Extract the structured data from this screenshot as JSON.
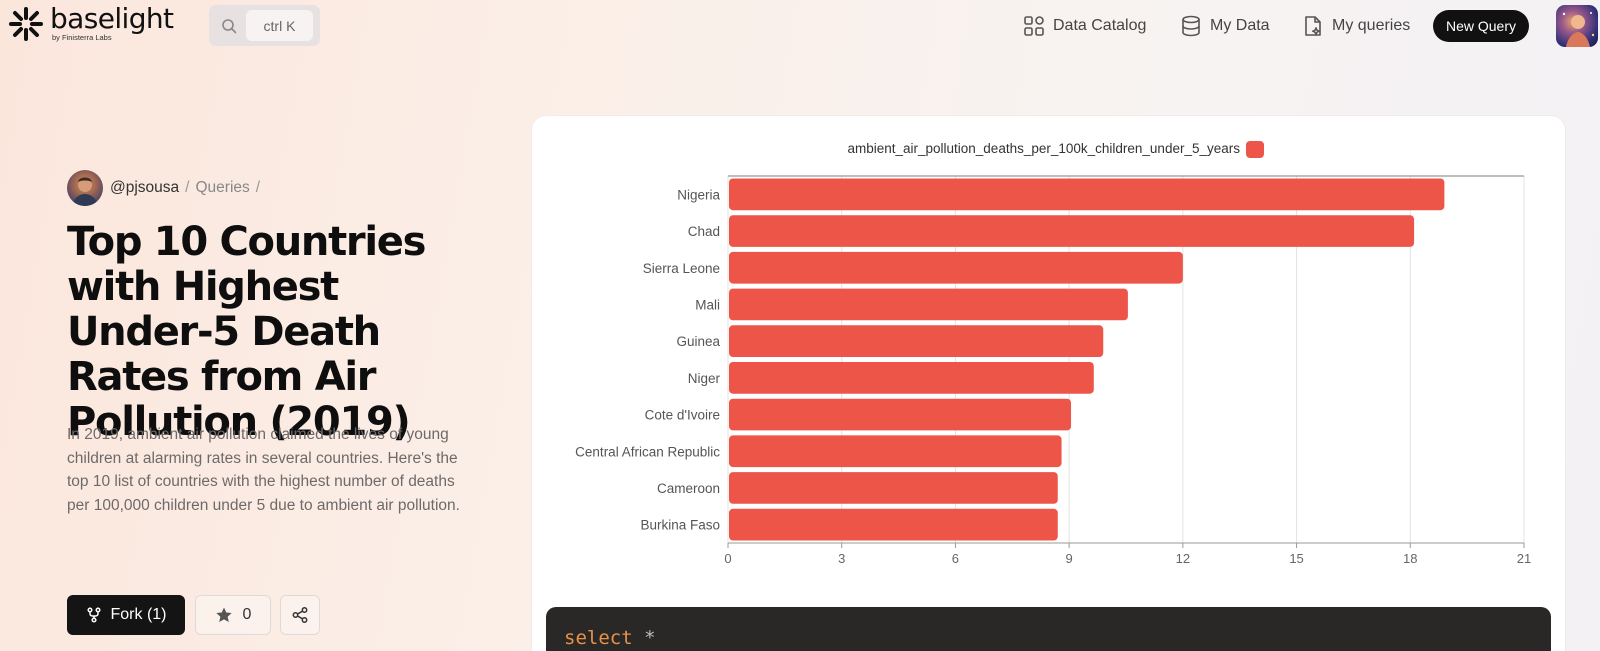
{
  "brand": {
    "name": "baselight",
    "tagline": "by Finisterra Labs"
  },
  "search": {
    "shortcut": "ctrl K"
  },
  "nav": {
    "data_catalog": "Data Catalog",
    "my_data": "My Data",
    "my_queries": "My queries",
    "new_query": "New Query"
  },
  "breadcrumb": {
    "user": "@pjsousa",
    "sep1": "/",
    "section": "Queries",
    "sep2": "/"
  },
  "query": {
    "title": "Top 10 Countries with Highest Under-5 Death Rates from Air Pollution (2019)",
    "description": "In 2019, ambient air pollution claimed the lives of young children at alarming rates in several countries. Here's the top 10 list of countries with the highest number of deaths per 100,000 children under 5 due to ambient air pollution."
  },
  "actions": {
    "fork_label": "Fork (1)",
    "star_count": "0"
  },
  "code": {
    "keyword": "select",
    "rest": "*"
  },
  "colors": {
    "bar": "#ec5548",
    "accent": "#111111"
  },
  "chart_data": {
    "type": "bar",
    "orientation": "horizontal",
    "legend": "top-center",
    "grid": true,
    "series": [
      {
        "name": "ambient_air_pollution_deaths_per_100k_children_under_5_years",
        "values": [
          18.9,
          18.1,
          12.0,
          10.55,
          9.9,
          9.65,
          9.05,
          8.8,
          8.7,
          8.7
        ]
      }
    ],
    "categories": [
      "Nigeria",
      "Chad",
      "Sierra Leone",
      "Mali",
      "Guinea",
      "Niger",
      "Cote d'Ivoire",
      "Central African Republic",
      "Cameroon",
      "Burkina Faso"
    ],
    "xlim": [
      0,
      21
    ],
    "xticks": [
      "0",
      "3",
      "6",
      "9",
      "12",
      "15",
      "18",
      "21"
    ]
  }
}
